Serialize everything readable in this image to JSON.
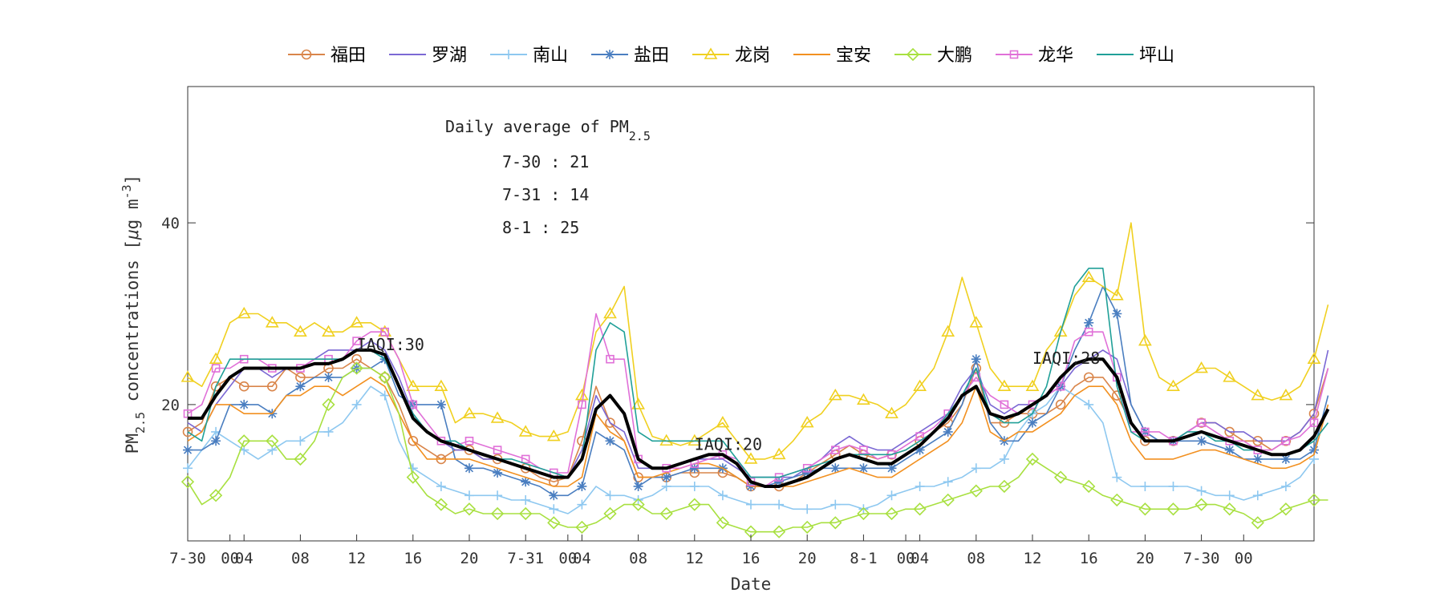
{
  "chart_data": {
    "type": "line",
    "xlabel": "Date",
    "ylabel": "PM2.5 concentrations [μg m-3]",
    "ylabel_parts": {
      "pm": "PM",
      "sub": "2.5",
      "mid": " concentrations [",
      "mu": "μ",
      "g": "g m",
      "sup": "-3",
      "end": "]"
    },
    "xlim": [
      0,
      80
    ],
    "ylim": [
      5,
      55
    ],
    "x_ticks": [
      {
        "x": 0,
        "label": "7-30"
      },
      {
        "x": 3,
        "label": "00"
      },
      {
        "x": 4,
        "label": "04"
      },
      {
        "x": 8,
        "label": "08"
      },
      {
        "x": 12,
        "label": "12"
      },
      {
        "x": 16,
        "label": "16"
      },
      {
        "x": 20,
        "label": "20"
      },
      {
        "x": 24,
        "label": "7-31"
      },
      {
        "x": 27,
        "label": "00"
      },
      {
        "x": 28,
        "label": "04"
      },
      {
        "x": 32,
        "label": "08"
      },
      {
        "x": 36,
        "label": "12"
      },
      {
        "x": 40,
        "label": "16"
      },
      {
        "x": 44,
        "label": "20"
      },
      {
        "x": 48,
        "label": "8-1"
      },
      {
        "x": 51,
        "label": "00"
      },
      {
        "x": 52,
        "label": "04"
      },
      {
        "x": 56,
        "label": "08"
      },
      {
        "x": 60,
        "label": "12"
      },
      {
        "x": 64,
        "label": "16"
      },
      {
        "x": 68,
        "label": "20"
      },
      {
        "x": 72,
        "label": "7-30"
      },
      {
        "x": 75,
        "label": "00"
      }
    ],
    "y_ticks": [
      20,
      40
    ],
    "grid": false,
    "legend": "top",
    "info_box": {
      "title_main": "Daily average of PM",
      "title_sub": "2.5",
      "lines": [
        "7-30 : 21",
        "7-31 : 14",
        "8-1 : 25"
      ]
    },
    "annotations": [
      {
        "text": "IAQI:30",
        "x": 12,
        "y": 26
      },
      {
        "text": "IAQI:20",
        "x": 36,
        "y": 15
      },
      {
        "text": "IAQI:28",
        "x": 60,
        "y": 24.5
      }
    ],
    "series": [
      {
        "name": "福田",
        "color": "#d9854a",
        "marker": "circle",
        "values": [
          17,
          18,
          22,
          23,
          22,
          22,
          22,
          24,
          23,
          23,
          24,
          24,
          25,
          24,
          23,
          20,
          16,
          15,
          14,
          15,
          15,
          14,
          14,
          13.5,
          13,
          12,
          11.5,
          12,
          16,
          22,
          18,
          16,
          12,
          12,
          12,
          12.5,
          12.5,
          12.5,
          12.5,
          12,
          11,
          11,
          11,
          11.5,
          12.5,
          13.5,
          14.5,
          15.5,
          14.5,
          14,
          14.5,
          15,
          16,
          17,
          18,
          20,
          24,
          18,
          18,
          19,
          19,
          19,
          20,
          22,
          23,
          23,
          21,
          18,
          16,
          16,
          16,
          17,
          18,
          18,
          17,
          16,
          16,
          15,
          16,
          17,
          19,
          24
        ]
      },
      {
        "name": "罗湖",
        "color": "#7b68d4",
        "marker": "none",
        "values": [
          18,
          17,
          20,
          22,
          24,
          24,
          23,
          24,
          24,
          25,
          26,
          26,
          26,
          27,
          26,
          23,
          19,
          17,
          16,
          15,
          15,
          14,
          14,
          13.5,
          13,
          12.5,
          12,
          12,
          15,
          21,
          18,
          17,
          13,
          13,
          13,
          13.5,
          14,
          14,
          14,
          13,
          12,
          12,
          12,
          12,
          13,
          14,
          15.5,
          16.5,
          15.5,
          15,
          15,
          16,
          17,
          18,
          19,
          22,
          24,
          20,
          19,
          20,
          20,
          21,
          22,
          24,
          25,
          26,
          25,
          20,
          17,
          16,
          16,
          17,
          18,
          18,
          17,
          17,
          16,
          16,
          16,
          17,
          19,
          26
        ]
      },
      {
        "name": "南山",
        "color": "#8ec8f0",
        "marker": "plus",
        "values": [
          13,
          15,
          17,
          16,
          15,
          14,
          15,
          16,
          16,
          17,
          17,
          18,
          20,
          22,
          21,
          16,
          13,
          12,
          11,
          10.5,
          10,
          10,
          10,
          9.5,
          9.5,
          9,
          8.5,
          8,
          9,
          11,
          10,
          10,
          9.5,
          10,
          11,
          11,
          11,
          11,
          10,
          9.5,
          9,
          9,
          9,
          8.5,
          8.5,
          8.5,
          9,
          9,
          8.5,
          9,
          10,
          10.5,
          11,
          11,
          11.5,
          12,
          13,
          13,
          14,
          17,
          19,
          20,
          22,
          21,
          20,
          18,
          12,
          11,
          11,
          11,
          11,
          11,
          10.5,
          10,
          10,
          9.5,
          10,
          10.5,
          11,
          12,
          14
        ]
      },
      {
        "name": "盐田",
        "color": "#4a7ec0",
        "marker": "asterisk",
        "values": [
          15,
          15,
          16,
          20,
          20,
          20,
          19,
          21,
          22,
          23,
          23,
          23,
          24,
          24,
          25,
          21,
          20,
          20,
          20,
          14,
          13,
          13,
          12.5,
          12,
          11.5,
          11,
          10,
          10,
          11,
          17,
          16,
          15,
          11,
          12,
          12,
          12.5,
          13,
          13,
          13,
          12,
          11,
          11,
          11.5,
          12,
          12.5,
          13,
          13,
          13,
          13,
          13,
          13,
          14,
          15,
          16,
          17,
          20,
          25,
          18,
          16,
          16,
          18,
          19,
          22,
          26,
          29,
          33,
          30,
          20,
          17,
          16,
          16,
          16,
          16,
          15.5,
          15,
          14,
          14,
          14,
          14,
          14,
          15,
          21
        ]
      },
      {
        "name": "龙岗",
        "color": "#f0d020",
        "marker": "triangle",
        "values": [
          23,
          22,
          25,
          29,
          30,
          30,
          29,
          29,
          28,
          29,
          28,
          28,
          29,
          29,
          28,
          25,
          22,
          22,
          22,
          18,
          19,
          19,
          18.5,
          18,
          17,
          16.5,
          16.5,
          17,
          21,
          28,
          30,
          33,
          20,
          16.5,
          16,
          15.5,
          16,
          17,
          18,
          16,
          14,
          14,
          14.5,
          16,
          18,
          19,
          21,
          21,
          20.5,
          20,
          19,
          20,
          22,
          24,
          28,
          34,
          29,
          24,
          22,
          22,
          22,
          26,
          28,
          32,
          34,
          33,
          32,
          40,
          27,
          23,
          22,
          23,
          24,
          24,
          23,
          22,
          21,
          20.5,
          21,
          22,
          25,
          31
        ]
      },
      {
        "name": "宝安",
        "color": "#f29020",
        "marker": "none",
        "values": [
          16,
          17,
          20,
          20,
          19,
          19,
          19,
          21,
          21,
          22,
          22,
          21,
          22,
          23,
          22,
          19,
          16,
          14,
          14,
          14,
          14,
          13.5,
          13,
          12.5,
          12,
          11.5,
          11,
          11,
          12,
          19,
          17,
          16,
          12,
          12,
          12.5,
          13,
          13.5,
          13.5,
          13,
          12,
          11,
          11,
          11,
          11,
          11.5,
          12,
          12.5,
          13,
          12.5,
          12,
          12,
          13,
          14,
          15,
          16,
          18,
          22,
          17,
          16,
          17,
          17,
          18,
          19,
          21,
          22,
          22,
          20,
          16,
          14,
          14,
          14,
          14.5,
          15,
          15,
          14.5,
          14,
          13.5,
          13,
          13,
          13.5,
          14.5,
          20
        ]
      },
      {
        "name": "大鹏",
        "color": "#a8e040",
        "marker": "diamond",
        "values": [
          11.5,
          9,
          10,
          12,
          16,
          16,
          16,
          14,
          14,
          16,
          20,
          23,
          24,
          24,
          23,
          19,
          12,
          10,
          9,
          8,
          8.5,
          8,
          8,
          8,
          8,
          8,
          7,
          6.5,
          6.5,
          7,
          8,
          9,
          9,
          8,
          8,
          8.5,
          9,
          9,
          7,
          6.5,
          6,
          6,
          6,
          6.5,
          6.5,
          7,
          7,
          7.5,
          8,
          8,
          8,
          8.5,
          8.5,
          9,
          9.5,
          10,
          10.5,
          11,
          11,
          12,
          14,
          13,
          12,
          11.5,
          11,
          10,
          9.5,
          9,
          8.5,
          8.5,
          8.5,
          8.5,
          9,
          9,
          8.5,
          8,
          7,
          7.5,
          8.5,
          9,
          9.5,
          9.5
        ]
      },
      {
        "name": "龙华",
        "color": "#e070d8",
        "marker": "square",
        "values": [
          19,
          20,
          24,
          24,
          25,
          25,
          24,
          24,
          24,
          25,
          25,
          25,
          27,
          28,
          28,
          25,
          20,
          18,
          16,
          15.5,
          16,
          15.5,
          15,
          14.5,
          14,
          13,
          12.5,
          12.5,
          20,
          30,
          25,
          25,
          14,
          13,
          13,
          13,
          13.5,
          14,
          14.5,
          14,
          11.5,
          11,
          12,
          12.5,
          13,
          14,
          15,
          15.5,
          15,
          14,
          14.5,
          15.5,
          16.5,
          17.5,
          19,
          21,
          23,
          21,
          20,
          19,
          20,
          21,
          22,
          27,
          28,
          28,
          23,
          17,
          17,
          17,
          16,
          17,
          18,
          17,
          16,
          16,
          15,
          15,
          16,
          16.5,
          18,
          24
        ]
      },
      {
        "name": "坪山",
        "color": "#20a098",
        "marker": "none",
        "values": [
          17,
          16,
          22,
          25,
          25,
          25,
          25,
          25,
          25,
          25,
          25,
          25,
          26,
          26,
          25,
          22,
          19,
          17,
          16,
          16,
          15,
          14.5,
          14,
          14,
          13.5,
          13,
          12.5,
          12,
          14,
          26,
          29,
          28,
          17,
          16,
          16,
          16,
          16,
          16,
          16,
          14,
          12,
          12,
          12,
          12.5,
          13,
          13.5,
          14,
          14.5,
          14.5,
          14.5,
          14.5,
          15,
          16,
          17,
          19,
          21,
          24,
          19,
          18,
          18,
          19,
          22,
          28,
          33,
          35,
          35,
          22,
          17,
          16,
          16,
          16,
          17,
          17,
          16,
          16,
          15,
          15,
          14.5,
          14.5,
          15,
          16,
          18
        ]
      },
      {
        "name": "",
        "color": "#000000",
        "marker": "none",
        "width": 4,
        "values": [
          18.5,
          18.5,
          21,
          23,
          24,
          24,
          24,
          24,
          24,
          24.5,
          24.5,
          25,
          26,
          26,
          25.5,
          22,
          18.5,
          17,
          16,
          15.5,
          15,
          14.5,
          14,
          13.5,
          13,
          12.5,
          12,
          12,
          14,
          19.5,
          21,
          19,
          14,
          13,
          13,
          13.5,
          14,
          14.5,
          14.5,
          13.5,
          11.5,
          11,
          11,
          11.5,
          12,
          13,
          14,
          14.5,
          14,
          13.5,
          13.5,
          14.5,
          15.5,
          17,
          18.5,
          21,
          22,
          19,
          18.5,
          19,
          20,
          21,
          23,
          24.5,
          25,
          25,
          23,
          18,
          16,
          16,
          16,
          16.5,
          17,
          16.5,
          16,
          15.5,
          15,
          14.5,
          14.5,
          15,
          16.5,
          19.5
        ]
      }
    ]
  }
}
